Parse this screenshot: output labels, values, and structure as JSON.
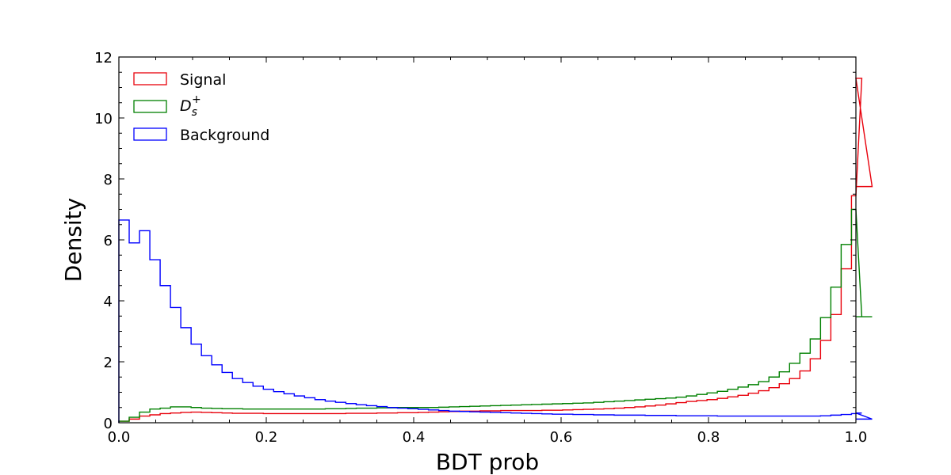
{
  "chart_data": {
    "type": "histogram",
    "title": "",
    "xlabel": "BDT prob",
    "ylabel": "Density",
    "xlim": [
      0.0,
      1.0
    ],
    "ylim": [
      0,
      12
    ],
    "xticks": [
      "0.0",
      "0.2",
      "0.4",
      "0.6",
      "0.8",
      "1.0"
    ],
    "yticks": [
      "0",
      "2",
      "4",
      "6",
      "8",
      "10",
      "12"
    ],
    "grid": false,
    "legend_position": "top-left",
    "bin_edges_start": 0.0,
    "bin_width": 0.014,
    "series": [
      {
        "name": "Signal",
        "color": "#e8000b",
        "values": [
          0.05,
          0.12,
          0.22,
          0.26,
          0.3,
          0.32,
          0.34,
          0.35,
          0.34,
          0.33,
          0.32,
          0.31,
          0.31,
          0.31,
          0.3,
          0.3,
          0.3,
          0.3,
          0.3,
          0.3,
          0.3,
          0.3,
          0.31,
          0.31,
          0.31,
          0.32,
          0.32,
          0.33,
          0.33,
          0.34,
          0.35,
          0.36,
          0.37,
          0.38,
          0.38,
          0.39,
          0.39,
          0.4,
          0.4,
          0.4,
          0.4,
          0.41,
          0.41,
          0.42,
          0.43,
          0.44,
          0.45,
          0.46,
          0.48,
          0.5,
          0.52,
          0.55,
          0.58,
          0.62,
          0.66,
          0.7,
          0.73,
          0.76,
          0.8,
          0.85,
          0.9,
          0.97,
          1.05,
          1.15,
          1.28,
          1.45,
          1.7,
          2.1,
          2.7,
          3.55,
          5.05,
          7.45,
          11.3,
          7.75
        ]
      },
      {
        "name": "D_s^+",
        "color": "#008000",
        "values": [
          0.05,
          0.18,
          0.35,
          0.45,
          0.48,
          0.52,
          0.52,
          0.5,
          0.48,
          0.47,
          0.46,
          0.46,
          0.45,
          0.45,
          0.45,
          0.45,
          0.45,
          0.45,
          0.45,
          0.45,
          0.46,
          0.46,
          0.47,
          0.48,
          0.48,
          0.49,
          0.49,
          0.5,
          0.5,
          0.5,
          0.5,
          0.51,
          0.52,
          0.53,
          0.54,
          0.55,
          0.56,
          0.57,
          0.58,
          0.59,
          0.6,
          0.61,
          0.62,
          0.63,
          0.64,
          0.65,
          0.67,
          0.69,
          0.71,
          0.73,
          0.75,
          0.77,
          0.79,
          0.81,
          0.84,
          0.88,
          0.93,
          0.98,
          1.03,
          1.1,
          1.17,
          1.25,
          1.35,
          1.5,
          1.67,
          1.95,
          2.28,
          2.75,
          3.45,
          4.45,
          5.85,
          7.0,
          3.48,
          3.48
        ]
      },
      {
        "name": "Background",
        "color": "#0000ff",
        "values": [
          6.65,
          5.9,
          6.3,
          5.35,
          4.5,
          3.78,
          3.12,
          2.58,
          2.2,
          1.9,
          1.65,
          1.45,
          1.32,
          1.2,
          1.1,
          1.02,
          0.95,
          0.88,
          0.82,
          0.76,
          0.71,
          0.67,
          0.63,
          0.59,
          0.56,
          0.53,
          0.5,
          0.48,
          0.46,
          0.44,
          0.42,
          0.4,
          0.38,
          0.37,
          0.36,
          0.35,
          0.34,
          0.33,
          0.32,
          0.31,
          0.3,
          0.29,
          0.28,
          0.28,
          0.27,
          0.27,
          0.26,
          0.26,
          0.25,
          0.25,
          0.25,
          0.24,
          0.24,
          0.24,
          0.23,
          0.23,
          0.23,
          0.23,
          0.22,
          0.22,
          0.22,
          0.22,
          0.22,
          0.22,
          0.22,
          0.22,
          0.22,
          0.22,
          0.23,
          0.25,
          0.27,
          0.3,
          0.32,
          0.12
        ]
      }
    ]
  },
  "legend": {
    "signal_label": "Signal",
    "ds_label_base": "D",
    "ds_label_sub": "s",
    "ds_label_sup": "+",
    "background_label": "Background"
  }
}
